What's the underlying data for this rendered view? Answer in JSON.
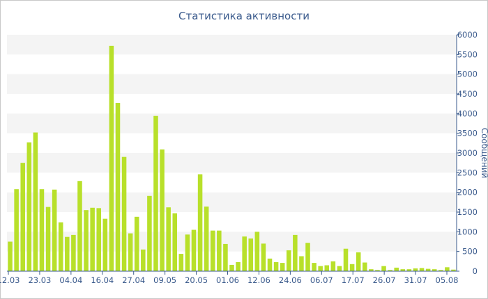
{
  "chart_data": {
    "type": "bar",
    "title": "Статистика активности",
    "ylabel": "Сообщений",
    "ylim": [
      0,
      6000
    ],
    "y_ticks": [
      0,
      500,
      1000,
      1500,
      2000,
      2500,
      3000,
      3500,
      4000,
      4500,
      5000,
      5500,
      6000
    ],
    "x_tick_labels": [
      "12.03",
      "23.03",
      "04.04",
      "16.04",
      "27.04",
      "09.05",
      "20.05",
      "01.06",
      "12.06",
      "24.06",
      "06.07",
      "17.07",
      "26.07",
      "31.07",
      "05.08"
    ],
    "values": [
      750,
      2080,
      2750,
      3270,
      3520,
      2080,
      1630,
      2070,
      1240,
      870,
      920,
      2290,
      1550,
      1610,
      1600,
      1330,
      5720,
      4270,
      2900,
      960,
      1380,
      550,
      1910,
      3940,
      3090,
      1620,
      1470,
      440,
      930,
      1050,
      2460,
      1640,
      1030,
      1030,
      690,
      160,
      230,
      880,
      830,
      1000,
      700,
      320,
      230,
      210,
      530,
      920,
      380,
      720,
      210,
      130,
      150,
      250,
      130,
      570,
      180,
      480,
      220,
      50,
      30,
      130,
      30,
      90,
      50,
      50,
      70,
      80,
      60,
      50,
      30,
      100,
      40
    ],
    "bar_color": "#b8e02a",
    "grid": "horizontal bands",
    "y_axis_side": "right"
  }
}
